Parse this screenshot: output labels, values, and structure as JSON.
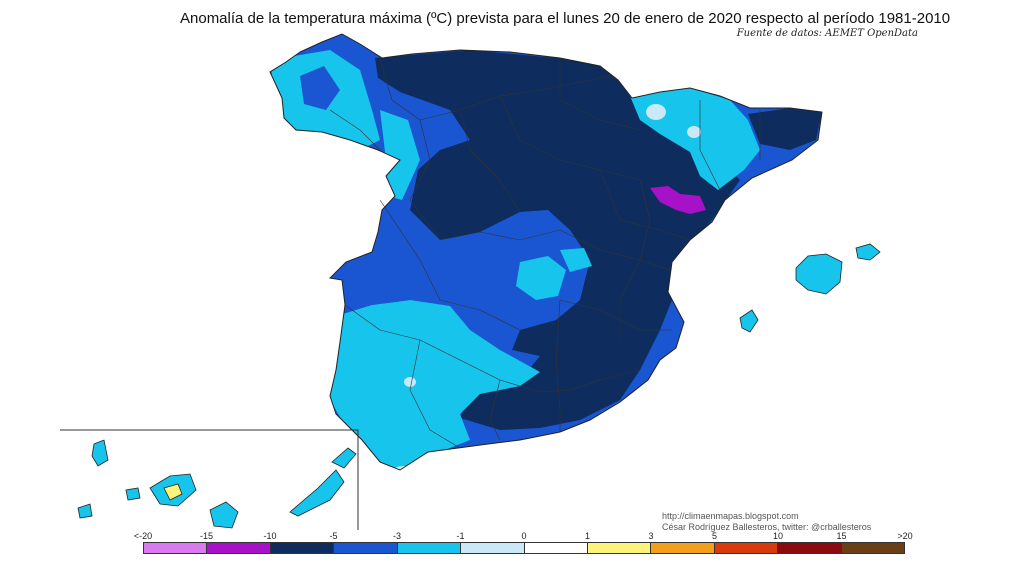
{
  "header": {
    "title": "Anomalía de la temperatura máxima (ºC) prevista para el lunes 20 de enero de 2020 respecto al período 1981-2010",
    "source": "Fuente de datos: AEMET OpenData"
  },
  "credits": {
    "line1": "http://climaenmapas.blogspot.com",
    "line2": "César Rodríguez Ballesteros, twitter: @crballesteros"
  },
  "legend": {
    "ticks": [
      "<-20",
      "-15",
      "-10",
      "-5",
      "-3",
      "-1",
      "0",
      "1",
      "3",
      "5",
      "10",
      "15",
      ">20"
    ],
    "colors": [
      "#d97af0",
      "#a712c9",
      "#0e2d5e",
      "#1a56d2",
      "#16c4ec",
      "#c9e9f8",
      "#ffffff",
      "#fbf37a",
      "#f39e1c",
      "#d83a0c",
      "#8b0b10",
      "#6b3f16"
    ]
  }
}
